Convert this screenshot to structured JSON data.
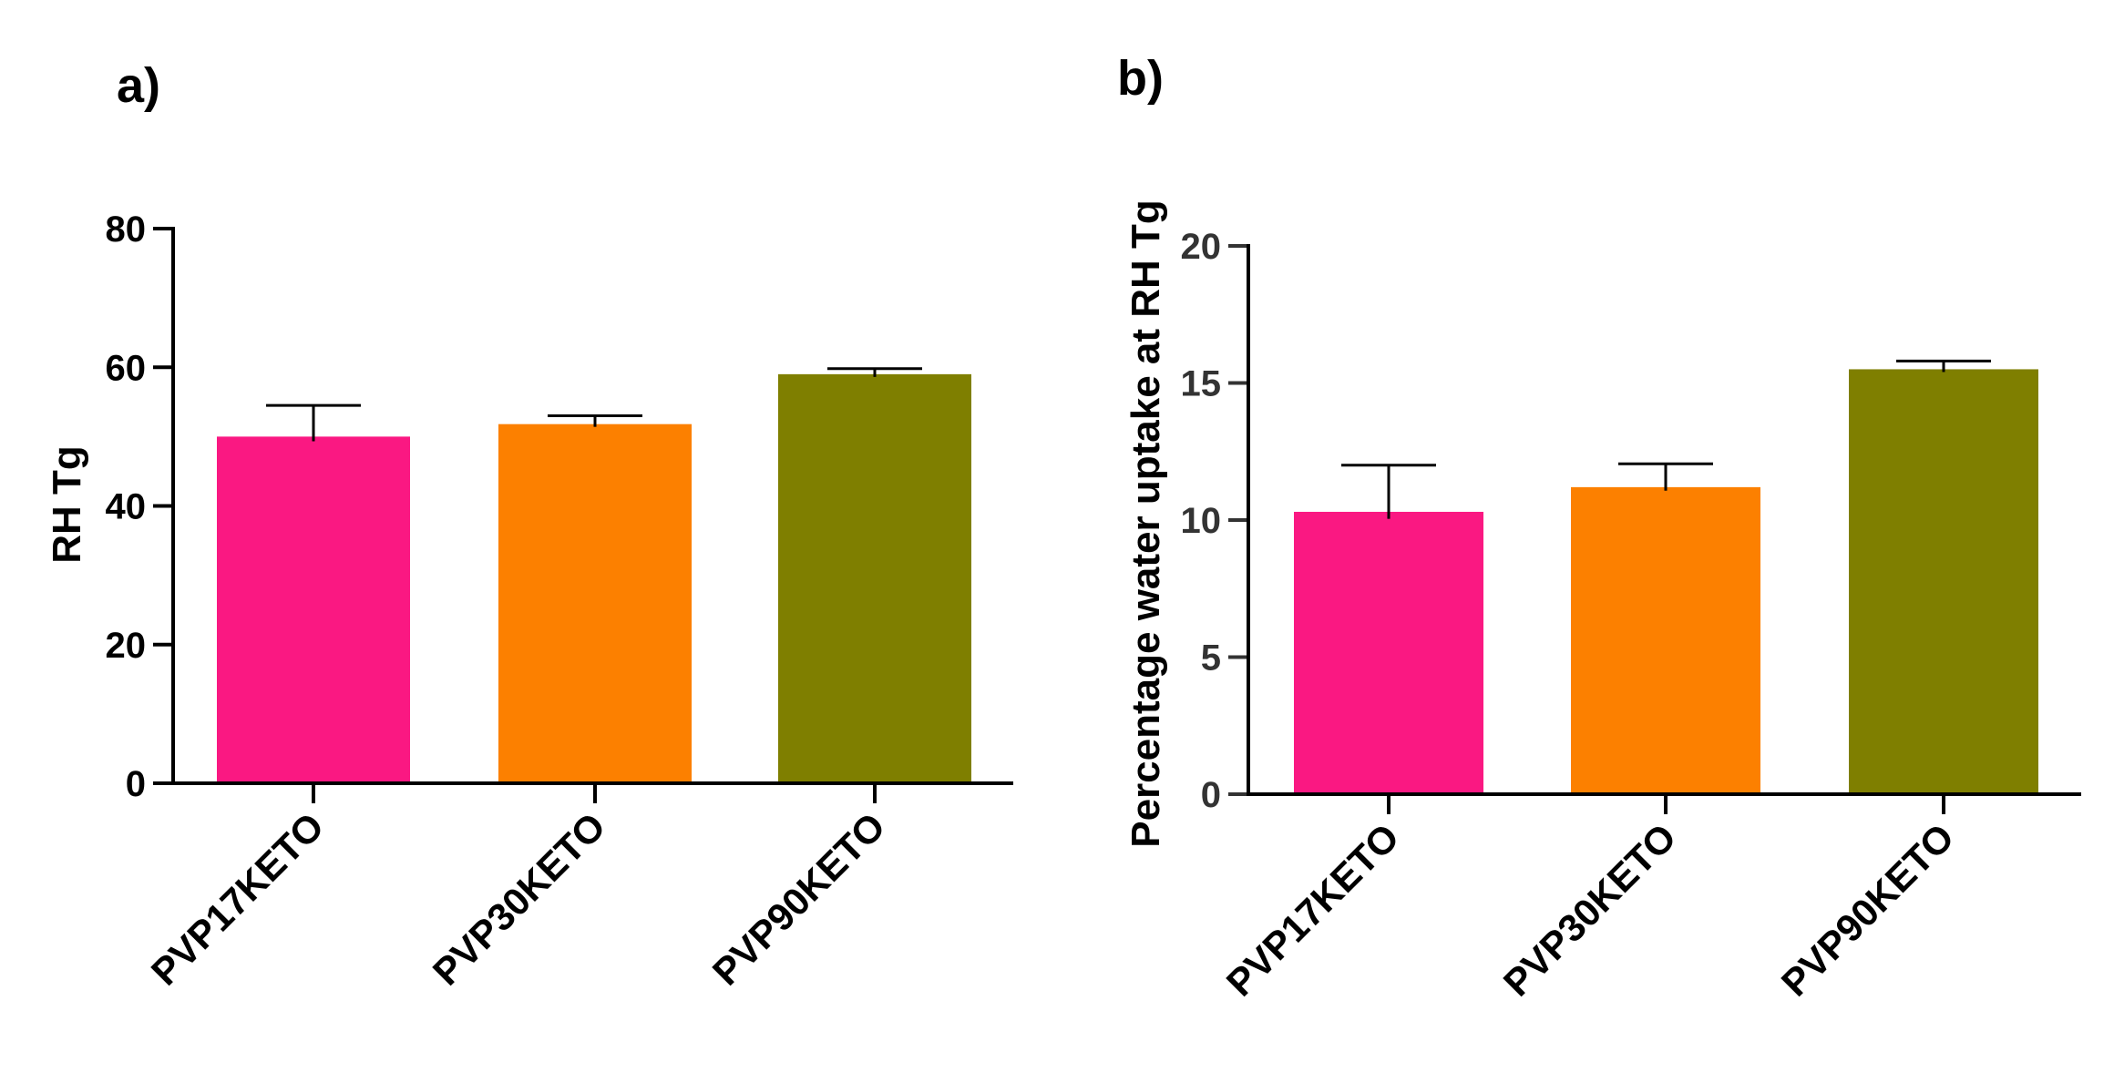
{
  "chart_data": [
    {
      "panel_label": "a)",
      "type": "bar",
      "categories": [
        "PVP17KETO",
        "PVP30KETO",
        "PVP90KETO"
      ],
      "values": [
        50,
        51.8,
        59
      ],
      "errors": [
        4.5,
        1.2,
        0.8
      ],
      "colors": [
        "#fa1882",
        "#fc8000",
        "#7f7f00"
      ],
      "xlabel": "",
      "ylabel": "RH Tg",
      "ylim": [
        0,
        80
      ],
      "yticks": [
        0,
        20,
        40,
        60,
        80
      ],
      "grid": false
    },
    {
      "panel_label": "b)",
      "type": "bar",
      "categories": [
        "PVP17KETO",
        "PVP30KETO",
        "PVP90KETO"
      ],
      "values": [
        10.3,
        11.2,
        15.5
      ],
      "errors": [
        1.7,
        0.85,
        0.3
      ],
      "colors": [
        "#fa1882",
        "#fc8000",
        "#7f7f00"
      ],
      "xlabel": "",
      "ylabel": "Percentage water uptake at RH Tg",
      "ylim": [
        0,
        20
      ],
      "yticks": [
        0,
        5,
        10,
        15,
        20
      ],
      "grid": false
    }
  ]
}
